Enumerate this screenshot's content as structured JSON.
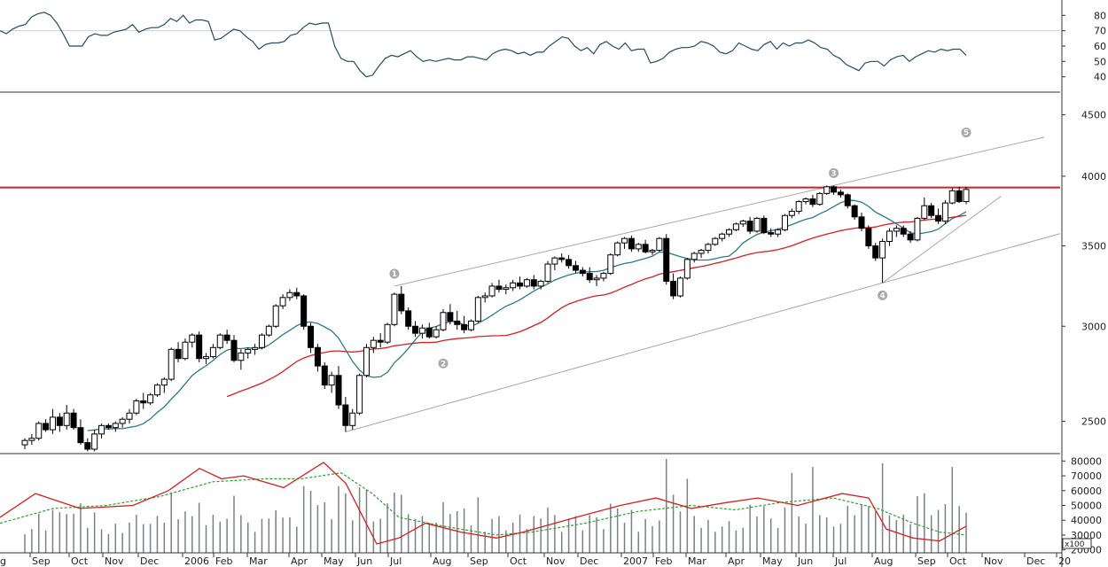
{
  "chart_data": [
    {
      "type": "line",
      "panel": "indicator",
      "ylim": [
        30,
        90
      ],
      "yticks": [
        40,
        50,
        60,
        70,
        80
      ],
      "reference_line": 70,
      "grid": false,
      "series": [
        {
          "color": "#1f4e63",
          "values": [
            70,
            68,
            71,
            73,
            74,
            79,
            81,
            82,
            80,
            75,
            68,
            60,
            60,
            60,
            66,
            68,
            67,
            67,
            69,
            70,
            71,
            74,
            69,
            71,
            72,
            72,
            74,
            78,
            76,
            80,
            75,
            77,
            77,
            76,
            64,
            65,
            68,
            71,
            70,
            66,
            63,
            58,
            61,
            62,
            62,
            63,
            67,
            68,
            72,
            75,
            74,
            75,
            75,
            60,
            52,
            50,
            50,
            44,
            40,
            41,
            47,
            52,
            54,
            53,
            55,
            57,
            53,
            50,
            51,
            50,
            51,
            52,
            51,
            51,
            53,
            53,
            52,
            51,
            55,
            57,
            58,
            57,
            55,
            56,
            54,
            56,
            56,
            60,
            63,
            66,
            65,
            60,
            57,
            59,
            55,
            61,
            63,
            60,
            58,
            62,
            57,
            58,
            58,
            49,
            50,
            52,
            56,
            58,
            59,
            59,
            60,
            63,
            62,
            60,
            56,
            55,
            57,
            62,
            60,
            58,
            57,
            61,
            63,
            58,
            62,
            60,
            62,
            62,
            64,
            62,
            59,
            58,
            54,
            52,
            48,
            46,
            44,
            49,
            50,
            50,
            47,
            51,
            53,
            54,
            50,
            53,
            55,
            57,
            56,
            58,
            57,
            58,
            58,
            54
          ]
        }
      ]
    },
    {
      "type": "candlestick",
      "panel": "price",
      "ylim": [
        2350,
        4700
      ],
      "yscale": "log",
      "yticks": [
        2500,
        3000,
        3500,
        4000,
        4500
      ],
      "resistance_line": {
        "value": 3915,
        "color": "#d42020"
      },
      "grid": false,
      "series": [
        {
          "type": "candlestick",
          "ohlc": [
            [
              2390,
              2420,
              2370,
              2410
            ],
            [
              2410,
              2440,
              2390,
              2420
            ],
            [
              2420,
              2500,
              2410,
              2490
            ],
            [
              2490,
              2510,
              2450,
              2460
            ],
            [
              2460,
              2560,
              2440,
              2520
            ],
            [
              2520,
              2540,
              2450,
              2480
            ],
            [
              2480,
              2580,
              2460,
              2540
            ],
            [
              2540,
              2560,
              2460,
              2470
            ],
            [
              2470,
              2510,
              2390,
              2400
            ],
            [
              2400,
              2420,
              2360,
              2370
            ],
            [
              2370,
              2460,
              2360,
              2440
            ],
            [
              2440,
              2490,
              2420,
              2480
            ],
            [
              2480,
              2490,
              2460,
              2470
            ],
            [
              2470,
              2500,
              2450,
              2490
            ],
            [
              2490,
              2520,
              2470,
              2510
            ],
            [
              2510,
              2560,
              2490,
              2540
            ],
            [
              2540,
              2610,
              2530,
              2600
            ],
            [
              2600,
              2640,
              2560,
              2590
            ],
            [
              2590,
              2640,
              2580,
              2630
            ],
            [
              2630,
              2690,
              2620,
              2680
            ],
            [
              2680,
              2720,
              2640,
              2710
            ],
            [
              2710,
              2880,
              2700,
              2870
            ],
            [
              2870,
              2910,
              2800,
              2820
            ],
            [
              2820,
              2930,
              2810,
              2910
            ],
            [
              2910,
              2960,
              2880,
              2950
            ],
            [
              2950,
              2970,
              2800,
              2820
            ],
            [
              2820,
              2850,
              2790,
              2830
            ],
            [
              2830,
              2900,
              2820,
              2880
            ],
            [
              2880,
              2960,
              2870,
              2950
            ],
            [
              2950,
              2980,
              2900,
              2920
            ],
            [
              2920,
              2950,
              2800,
              2810
            ],
            [
              2810,
              2870,
              2760,
              2850
            ],
            [
              2850,
              2880,
              2820,
              2870
            ],
            [
              2870,
              2900,
              2840,
              2880
            ],
            [
              2880,
              2960,
              2870,
              2950
            ],
            [
              2950,
              3010,
              2940,
              3000
            ],
            [
              3000,
              3130,
              2990,
              3120
            ],
            [
              3120,
              3190,
              3100,
              3170
            ],
            [
              3170,
              3220,
              3150,
              3200
            ],
            [
              3200,
              3230,
              3160,
              3180
            ],
            [
              3180,
              3190,
              2980,
              3000
            ],
            [
              3000,
              3020,
              2850,
              2880
            ],
            [
              2880,
              2900,
              2750,
              2780
            ],
            [
              2780,
              2800,
              2660,
              2680
            ],
            [
              2680,
              2750,
              2640,
              2730
            ],
            [
              2730,
              2780,
              2560,
              2580
            ],
            [
              2580,
              2620,
              2450,
              2480
            ],
            [
              2480,
              2560,
              2460,
              2540
            ],
            [
              2540,
              2740,
              2530,
              2730
            ],
            [
              2730,
              2900,
              2720,
              2880
            ],
            [
              2880,
              2940,
              2850,
              2920
            ],
            [
              2920,
              2960,
              2880,
              2910
            ],
            [
              2910,
              3020,
              2900,
              3010
            ],
            [
              3010,
              3200,
              3000,
              3190
            ],
            [
              3190,
              3240,
              3070,
              3090
            ],
            [
              3090,
              3110,
              2980,
              3000
            ],
            [
              3000,
              3030,
              2940,
              2960
            ],
            [
              2960,
              3010,
              2930,
              2990
            ],
            [
              2990,
              3020,
              2930,
              2940
            ],
            [
              2940,
              3000,
              2930,
              2980
            ],
            [
              2980,
              3100,
              2970,
              3080
            ],
            [
              3080,
              3130,
              3010,
              3030
            ],
            [
              3030,
              3090,
              2980,
              3010
            ],
            [
              3010,
              3060,
              2960,
              2980
            ],
            [
              2980,
              3040,
              2970,
              3030
            ],
            [
              3030,
              3180,
              3020,
              3170
            ],
            [
              3170,
              3200,
              3140,
              3180
            ],
            [
              3180,
              3260,
              3170,
              3240
            ],
            [
              3240,
              3280,
              3200,
              3220
            ],
            [
              3220,
              3250,
              3190,
              3230
            ],
            [
              3230,
              3280,
              3210,
              3260
            ],
            [
              3260,
              3300,
              3220,
              3240
            ],
            [
              3240,
              3290,
              3230,
              3280
            ],
            [
              3280,
              3310,
              3220,
              3240
            ],
            [
              3240,
              3280,
              3220,
              3270
            ],
            [
              3270,
              3400,
              3260,
              3380
            ],
            [
              3380,
              3430,
              3340,
              3420
            ],
            [
              3420,
              3450,
              3390,
              3410
            ],
            [
              3410,
              3440,
              3350,
              3370
            ],
            [
              3370,
              3400,
              3320,
              3340
            ],
            [
              3340,
              3360,
              3300,
              3320
            ],
            [
              3320,
              3360,
              3260,
              3280
            ],
            [
              3280,
              3310,
              3240,
              3290
            ],
            [
              3290,
              3330,
              3270,
              3320
            ],
            [
              3320,
              3450,
              3310,
              3440
            ],
            [
              3440,
              3530,
              3430,
              3520
            ],
            [
              3520,
              3560,
              3480,
              3550
            ],
            [
              3550,
              3570,
              3460,
              3480
            ],
            [
              3480,
              3520,
              3460,
              3510
            ],
            [
              3510,
              3540,
              3450,
              3460
            ],
            [
              3460,
              3480,
              3440,
              3470
            ],
            [
              3470,
              3560,
              3460,
              3550
            ],
            [
              3550,
              3580,
              3250,
              3270
            ],
            [
              3270,
              3320,
              3160,
              3180
            ],
            [
              3180,
              3300,
              3170,
              3290
            ],
            [
              3290,
              3420,
              3280,
              3410
            ],
            [
              3410,
              3460,
              3390,
              3450
            ],
            [
              3450,
              3480,
              3420,
              3470
            ],
            [
              3470,
              3520,
              3450,
              3510
            ],
            [
              3510,
              3560,
              3500,
              3550
            ],
            [
              3550,
              3590,
              3530,
              3580
            ],
            [
              3580,
              3620,
              3560,
              3610
            ],
            [
              3610,
              3660,
              3600,
              3650
            ],
            [
              3650,
              3680,
              3630,
              3670
            ],
            [
              3670,
              3700,
              3580,
              3600
            ],
            [
              3600,
              3700,
              3590,
              3690
            ],
            [
              3690,
              3710,
              3580,
              3590
            ],
            [
              3590,
              3620,
              3560,
              3580
            ],
            [
              3580,
              3620,
              3560,
              3610
            ],
            [
              3610,
              3720,
              3600,
              3710
            ],
            [
              3710,
              3760,
              3690,
              3740
            ],
            [
              3740,
              3820,
              3720,
              3810
            ],
            [
              3810,
              3840,
              3790,
              3830
            ],
            [
              3830,
              3860,
              3770,
              3790
            ],
            [
              3790,
              3880,
              3780,
              3870
            ],
            [
              3870,
              3930,
              3860,
              3920
            ],
            [
              3920,
              3930,
              3860,
              3880
            ],
            [
              3880,
              3900,
              3840,
              3860
            ],
            [
              3860,
              3870,
              3760,
              3780
            ],
            [
              3780,
              3790,
              3680,
              3700
            ],
            [
              3700,
              3730,
              3600,
              3620
            ],
            [
              3620,
              3640,
              3480,
              3500
            ],
            [
              3500,
              3520,
              3400,
              3420
            ],
            [
              3420,
              3550,
              3260,
              3530
            ],
            [
              3530,
              3620,
              3500,
              3600
            ],
            [
              3600,
              3640,
              3560,
              3620
            ],
            [
              3620,
              3640,
              3560,
              3580
            ],
            [
              3580,
              3600,
              3520,
              3540
            ],
            [
              3540,
              3700,
              3530,
              3690
            ],
            [
              3690,
              3840,
              3680,
              3780
            ],
            [
              3780,
              3800,
              3690,
              3710
            ],
            [
              3710,
              3760,
              3650,
              3670
            ],
            [
              3670,
              3820,
              3650,
              3800
            ],
            [
              3800,
              3910,
              3790,
              3890
            ],
            [
              3890,
              3920,
              3800,
              3810
            ],
            [
              3810,
              3920,
              3790,
              3900
            ]
          ]
        },
        {
          "type": "line",
          "name": "",
          "color": "#2a7a8c"
        },
        {
          "type": "line",
          "name": "",
          "color": "#d42020"
        }
      ],
      "wave_labels": [
        "1",
        "2",
        "3",
        "4",
        "5"
      ]
    },
    {
      "type": "line",
      "panel": "volume",
      "unit_label": "x100",
      "ylim": [
        18000,
        85000
      ],
      "yticks": [
        20000,
        30000,
        40000,
        50000,
        60000,
        70000,
        80000
      ],
      "grid": false,
      "series": [
        {
          "type": "bar",
          "color": "#7a7f88"
        },
        {
          "type": "line",
          "color": "#d42020"
        },
        {
          "type": "line",
          "color": "#2ca02c",
          "dashed": true
        }
      ]
    }
  ],
  "x_axis_labels": [
    "g",
    "Sep",
    "Oct",
    "Nov",
    "Dec",
    "2006",
    "Feb",
    "Mar",
    "Apr",
    "May",
    "Jun",
    "Jul",
    "Aug",
    "Sep",
    "Oct",
    "Nov",
    "Dec",
    "2007",
    "Feb",
    "Mar",
    "Apr",
    "May",
    "Jun",
    "Jul",
    "Aug",
    "Sep",
    "Oct",
    "Nov",
    "Dec",
    "20"
  ]
}
